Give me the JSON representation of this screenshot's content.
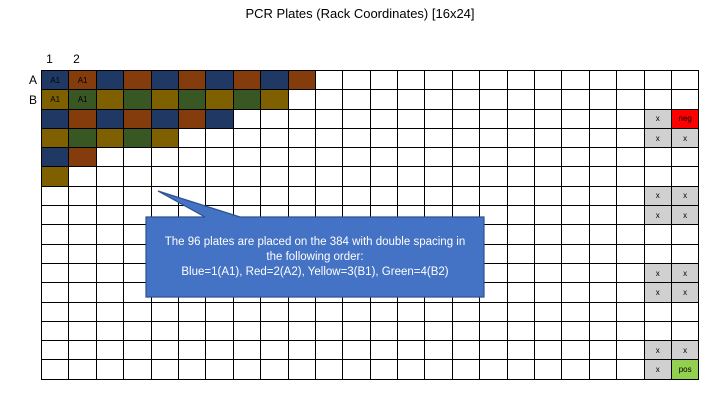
{
  "title": "PCR Plates (Rack Coordinates) [16x24]",
  "column_labels": [
    "1",
    "2"
  ],
  "row_labels": [
    "A",
    "B"
  ],
  "colors": {
    "blue": "#1f3864",
    "red": "#843c0c",
    "yellow": "#7f6000",
    "green": "#385723",
    "grey": "#d0d0d0",
    "neg": "#ff0000",
    "pos": "#92d050",
    "callout_fill": "#4472c4",
    "callout_stroke": "#2f528f"
  },
  "plate_rows": [
    {
      "row": 0,
      "seq": [
        "blue",
        "red",
        "blue",
        "red",
        "blue",
        "red",
        "blue",
        "red",
        "blue",
        "red"
      ]
    },
    {
      "row": 1,
      "seq": [
        "yellow",
        "green",
        "yellow",
        "green",
        "yellow",
        "green",
        "yellow",
        "green",
        "yellow"
      ]
    },
    {
      "row": 2,
      "seq": [
        "blue",
        "red",
        "blue",
        "red",
        "blue",
        "red",
        "blue"
      ]
    },
    {
      "row": 3,
      "seq": [
        "yellow",
        "green",
        "yellow",
        "green",
        "yellow"
      ]
    },
    {
      "row": 4,
      "seq": [
        "blue",
        "red"
      ]
    },
    {
      "row": 5,
      "seq": [
        "yellow"
      ]
    }
  ],
  "cell_labels": [
    {
      "row": 0,
      "col": 0,
      "text": "A1"
    },
    {
      "row": 0,
      "col": 1,
      "text": "A1"
    },
    {
      "row": 1,
      "col": 0,
      "text": "A1"
    },
    {
      "row": 1,
      "col": 1,
      "text": "A1"
    }
  ],
  "control_cells": [
    {
      "row": 2,
      "col": 22,
      "text": "x",
      "color": "grey"
    },
    {
      "row": 2,
      "col": 23,
      "text": "neg",
      "color": "neg"
    },
    {
      "row": 3,
      "col": 22,
      "text": "x",
      "color": "grey"
    },
    {
      "row": 3,
      "col": 23,
      "text": "x",
      "color": "grey"
    },
    {
      "row": 6,
      "col": 22,
      "text": "x",
      "color": "grey"
    },
    {
      "row": 6,
      "col": 23,
      "text": "x",
      "color": "grey"
    },
    {
      "row": 7,
      "col": 22,
      "text": "x",
      "color": "grey"
    },
    {
      "row": 7,
      "col": 23,
      "text": "x",
      "color": "grey"
    },
    {
      "row": 10,
      "col": 22,
      "text": "x",
      "color": "grey"
    },
    {
      "row": 10,
      "col": 23,
      "text": "x",
      "color": "grey"
    },
    {
      "row": 11,
      "col": 22,
      "text": "x",
      "color": "grey"
    },
    {
      "row": 11,
      "col": 23,
      "text": "x",
      "color": "grey"
    },
    {
      "row": 14,
      "col": 22,
      "text": "x",
      "color": "grey"
    },
    {
      "row": 14,
      "col": 23,
      "text": "x",
      "color": "grey"
    },
    {
      "row": 15,
      "col": 22,
      "text": "x",
      "color": "grey"
    },
    {
      "row": 15,
      "col": 23,
      "text": "pos",
      "color": "pos"
    }
  ],
  "callout": {
    "line1": "The 96 plates are placed on the 384 with double spacing in",
    "line2": "the following order:",
    "line3": "Blue=1(A1), Red=2(A2), Yellow=3(B1), Green=4(B2)"
  }
}
